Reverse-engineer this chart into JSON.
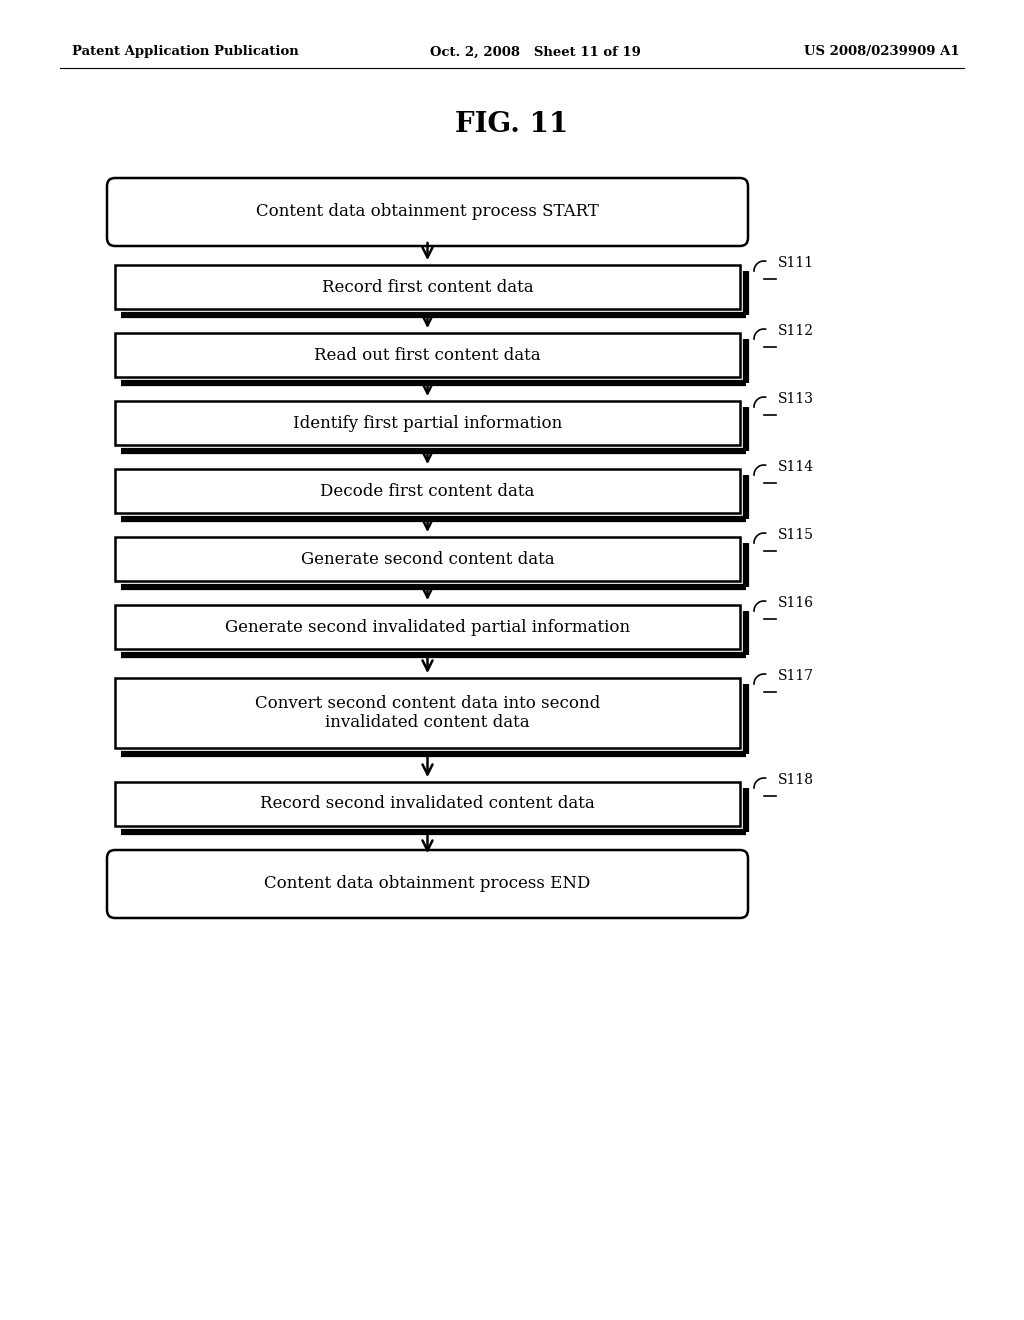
{
  "header_left": "Patent Application Publication",
  "header_mid": "Oct. 2, 2008   Sheet 11 of 19",
  "header_right": "US 2008/0239909 A1",
  "fig_title": "FIG. 11",
  "bg_color": "#ffffff",
  "steps": [
    {
      "label": "Content data obtainment process START",
      "type": "rounded",
      "step_label": null
    },
    {
      "label": "Record first content data",
      "type": "rect",
      "step_label": "S111"
    },
    {
      "label": "Read out first content data",
      "type": "rect",
      "step_label": "S112"
    },
    {
      "label": "Identify first partial information",
      "type": "rect",
      "step_label": "S113"
    },
    {
      "label": "Decode first content data",
      "type": "rect",
      "step_label": "S114"
    },
    {
      "label": "Generate second content data",
      "type": "rect",
      "step_label": "S115"
    },
    {
      "label": "Generate second invalidated partial information",
      "type": "rect",
      "step_label": "S116"
    },
    {
      "label": "Convert second content data into second\ninvalidated content data",
      "type": "rect",
      "step_label": "S117"
    },
    {
      "label": "Record second invalidated content data",
      "type": "rect",
      "step_label": "S118"
    },
    {
      "label": "Content data obtainment process END",
      "type": "rounded",
      "step_label": null
    }
  ]
}
